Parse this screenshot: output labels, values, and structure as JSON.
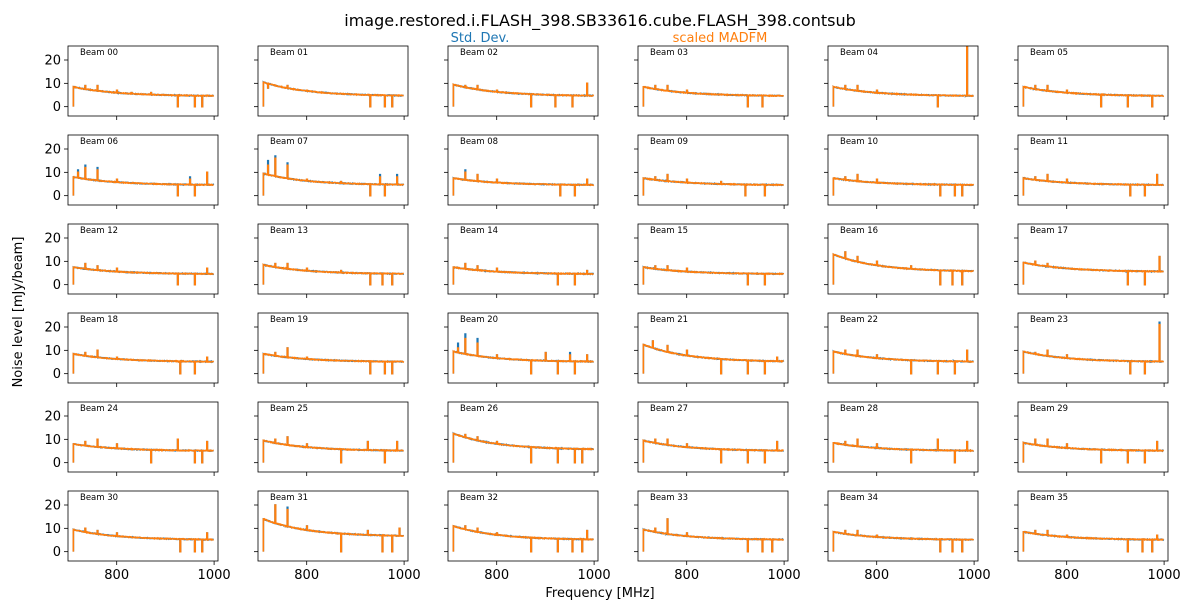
{
  "figure": {
    "title": "image.restored.i.FLASH_398.SB33616.cube.FLASH_398.contsub",
    "xlabel": "Frequency [MHz]",
    "ylabel": "Noise level [mJy/beam]"
  },
  "legend": [
    {
      "label": "Std. Dev.",
      "color": "#1f77b4"
    },
    {
      "label": "scaled MADFM",
      "color": "#ff7f0e"
    }
  ],
  "chart_data": {
    "type": "line",
    "layout": {
      "rows": 6,
      "cols": 6,
      "sharex": true,
      "sharey": true
    },
    "xlim": [
      700,
      1008
    ],
    "ylim": [
      -4,
      26
    ],
    "xticks": [
      800,
      1000
    ],
    "yticks": [
      0,
      10,
      20
    ],
    "xtick_labels": [
      "800",
      "1000"
    ],
    "ytick_labels": [
      "0",
      "10",
      "20"
    ],
    "freq_range": [
      711,
      999
    ],
    "series_names": [
      "Std. Dev.",
      "scaled MADFM"
    ],
    "series_colors": [
      "#1f77b4",
      "#ff7f0e"
    ],
    "panels": [
      {
        "label": "Beam 00",
        "start": 8.5,
        "end": 4.5,
        "spikes": [
          [
            735,
            9
          ],
          [
            760,
            9
          ],
          [
            800,
            7
          ],
          [
            830,
            6
          ],
          [
            870,
            6
          ],
          [
            925,
            0
          ],
          [
            960,
            0
          ],
          [
            975,
            0
          ]
        ]
      },
      {
        "label": "Beam 01",
        "start": 10.5,
        "end": 4.5,
        "spikes": [
          [
            720,
            8
          ],
          [
            735,
            9
          ],
          [
            760,
            9
          ],
          [
            800,
            7
          ],
          [
            930,
            0
          ],
          [
            960,
            0
          ],
          [
            975,
            0
          ]
        ]
      },
      {
        "label": "Beam 02",
        "start": 9.5,
        "end": 4.5,
        "spikes": [
          [
            735,
            9
          ],
          [
            760,
            9
          ],
          [
            800,
            7
          ],
          [
            870,
            0
          ],
          [
            920,
            0
          ],
          [
            955,
            0
          ],
          [
            985,
            10
          ]
        ]
      },
      {
        "label": "Beam 03",
        "start": 8.5,
        "end": 4.5,
        "spikes": [
          [
            735,
            9
          ],
          [
            760,
            9
          ],
          [
            800,
            7
          ],
          [
            925,
            0
          ],
          [
            955,
            0
          ]
        ]
      },
      {
        "label": "Beam 04",
        "start": 8.5,
        "end": 4.5,
        "spikes": [
          [
            735,
            9
          ],
          [
            760,
            9
          ],
          [
            800,
            7
          ],
          [
            925,
            0
          ],
          [
            985,
            26
          ]
        ]
      },
      {
        "label": "Beam 05",
        "start": 8.5,
        "end": 4.5,
        "spikes": [
          [
            735,
            9
          ],
          [
            760,
            9
          ],
          [
            800,
            7
          ],
          [
            870,
            0
          ],
          [
            925,
            0
          ],
          [
            975,
            0
          ]
        ]
      },
      {
        "label": "Beam 06",
        "start": 8,
        "end": 4.5,
        "spikes": [
          [
            720,
            10
          ],
          [
            735,
            12
          ],
          [
            760,
            11
          ],
          [
            800,
            7
          ],
          [
            925,
            0
          ],
          [
            950,
            7
          ],
          [
            960,
            0
          ],
          [
            985,
            10
          ]
        ],
        "std_spikes": [
          [
            720,
            11
          ],
          [
            735,
            13
          ],
          [
            760,
            12
          ],
          [
            950,
            8
          ]
        ]
      },
      {
        "label": "Beam 07",
        "start": 9.5,
        "end": 4.5,
        "spikes": [
          [
            720,
            13
          ],
          [
            735,
            16
          ],
          [
            760,
            13
          ],
          [
            800,
            7
          ],
          [
            870,
            6
          ],
          [
            930,
            0
          ],
          [
            950,
            8
          ],
          [
            960,
            0
          ],
          [
            985,
            8
          ]
        ],
        "std_spikes": [
          [
            720,
            15
          ],
          [
            735,
            17
          ],
          [
            760,
            14
          ],
          [
            950,
            9
          ],
          [
            985,
            9
          ]
        ]
      },
      {
        "label": "Beam 08",
        "start": 7.5,
        "end": 4.5,
        "spikes": [
          [
            735,
            10
          ],
          [
            760,
            9
          ],
          [
            800,
            7
          ],
          [
            930,
            0
          ],
          [
            960,
            0
          ],
          [
            985,
            7
          ]
        ],
        "std_spikes": [
          [
            735,
            11
          ]
        ]
      },
      {
        "label": "Beam 09",
        "start": 7.5,
        "end": 4.5,
        "spikes": [
          [
            735,
            8
          ],
          [
            760,
            9
          ],
          [
            800,
            7
          ],
          [
            870,
            6
          ],
          [
            920,
            0
          ],
          [
            960,
            0
          ]
        ]
      },
      {
        "label": "Beam 10",
        "start": 7.5,
        "end": 4.5,
        "spikes": [
          [
            735,
            8
          ],
          [
            760,
            9
          ],
          [
            800,
            7
          ],
          [
            930,
            0
          ],
          [
            960,
            0
          ],
          [
            975,
            0
          ]
        ]
      },
      {
        "label": "Beam 11",
        "start": 7.5,
        "end": 4.5,
        "spikes": [
          [
            735,
            8
          ],
          [
            760,
            9
          ],
          [
            800,
            7
          ],
          [
            930,
            0
          ],
          [
            960,
            0
          ],
          [
            985,
            9
          ]
        ]
      },
      {
        "label": "Beam 12",
        "start": 7.5,
        "end": 4.5,
        "spikes": [
          [
            735,
            9
          ],
          [
            760,
            8
          ],
          [
            800,
            7
          ],
          [
            925,
            0
          ],
          [
            960,
            0
          ],
          [
            985,
            7
          ]
        ]
      },
      {
        "label": "Beam 13",
        "start": 8.5,
        "end": 4.5,
        "spikes": [
          [
            735,
            9
          ],
          [
            760,
            9
          ],
          [
            800,
            7
          ],
          [
            870,
            6
          ],
          [
            930,
            0
          ],
          [
            955,
            0
          ],
          [
            975,
            0
          ]
        ]
      },
      {
        "label": "Beam 14",
        "start": 7.5,
        "end": 4.5,
        "spikes": [
          [
            735,
            9
          ],
          [
            760,
            8
          ],
          [
            800,
            7
          ],
          [
            925,
            0
          ],
          [
            960,
            0
          ],
          [
            985,
            6
          ]
        ]
      },
      {
        "label": "Beam 15",
        "start": 7.5,
        "end": 4.5,
        "spikes": [
          [
            735,
            8
          ],
          [
            760,
            8
          ],
          [
            800,
            7
          ],
          [
            925,
            0
          ],
          [
            960,
            0
          ]
        ]
      },
      {
        "label": "Beam 16",
        "start": 13,
        "end": 5.5,
        "spikes": [
          [
            735,
            14
          ],
          [
            760,
            12
          ],
          [
            800,
            10
          ],
          [
            870,
            8
          ],
          [
            930,
            0
          ],
          [
            955,
            0
          ],
          [
            975,
            0
          ]
        ]
      },
      {
        "label": "Beam 17",
        "start": 9.5,
        "end": 5.5,
        "spikes": [
          [
            735,
            10
          ],
          [
            760,
            9
          ],
          [
            800,
            7
          ],
          [
            925,
            0
          ],
          [
            960,
            0
          ],
          [
            990,
            12
          ]
        ]
      },
      {
        "label": "Beam 18",
        "start": 8.5,
        "end": 5,
        "spikes": [
          [
            735,
            9
          ],
          [
            760,
            10
          ],
          [
            800,
            7
          ],
          [
            930,
            0
          ],
          [
            960,
            0
          ],
          [
            985,
            7
          ]
        ]
      },
      {
        "label": "Beam 19",
        "start": 8.5,
        "end": 5,
        "spikes": [
          [
            735,
            9
          ],
          [
            760,
            11
          ],
          [
            800,
            7
          ],
          [
            930,
            0
          ],
          [
            960,
            0
          ],
          [
            975,
            0
          ]
        ]
      },
      {
        "label": "Beam 20",
        "start": 9.5,
        "end": 5,
        "spikes": [
          [
            720,
            11
          ],
          [
            735,
            15
          ],
          [
            760,
            13
          ],
          [
            800,
            8
          ],
          [
            870,
            0
          ],
          [
            900,
            9
          ],
          [
            925,
            0
          ],
          [
            950,
            8
          ],
          [
            960,
            0
          ],
          [
            985,
            8
          ]
        ],
        "std_spikes": [
          [
            720,
            13
          ],
          [
            735,
            17
          ],
          [
            760,
            15
          ],
          [
            950,
            9
          ]
        ]
      },
      {
        "label": "Beam 21",
        "start": 12.5,
        "end": 5,
        "spikes": [
          [
            730,
            14
          ],
          [
            760,
            12
          ],
          [
            800,
            10
          ],
          [
            870,
            0
          ],
          [
            925,
            0
          ],
          [
            960,
            0
          ],
          [
            985,
            7
          ]
        ]
      },
      {
        "label": "Beam 22",
        "start": 9.5,
        "end": 5,
        "spikes": [
          [
            735,
            10
          ],
          [
            760,
            10
          ],
          [
            800,
            8
          ],
          [
            870,
            0
          ],
          [
            925,
            0
          ],
          [
            960,
            0
          ],
          [
            985,
            10
          ]
        ]
      },
      {
        "label": "Beam 23",
        "start": 9.5,
        "end": 5,
        "spikes": [
          [
            735,
            9
          ],
          [
            760,
            10
          ],
          [
            800,
            8
          ],
          [
            930,
            0
          ],
          [
            960,
            0
          ],
          [
            990,
            21
          ]
        ],
        "std_spikes": [
          [
            990,
            22
          ]
        ]
      },
      {
        "label": "Beam 24",
        "start": 8,
        "end": 5,
        "spikes": [
          [
            735,
            9
          ],
          [
            760,
            10
          ],
          [
            800,
            8
          ],
          [
            870,
            0
          ],
          [
            925,
            10
          ],
          [
            960,
            0
          ],
          [
            975,
            0
          ],
          [
            985,
            9
          ]
        ]
      },
      {
        "label": "Beam 25",
        "start": 9.5,
        "end": 5,
        "spikes": [
          [
            735,
            10
          ],
          [
            760,
            11
          ],
          [
            800,
            8
          ],
          [
            870,
            0
          ],
          [
            925,
            9
          ],
          [
            960,
            0
          ],
          [
            985,
            9
          ]
        ]
      },
      {
        "label": "Beam 26",
        "start": 12.5,
        "end": 5.5,
        "spikes": [
          [
            735,
            12
          ],
          [
            760,
            11
          ],
          [
            800,
            9
          ],
          [
            870,
            0
          ],
          [
            925,
            0
          ],
          [
            960,
            0
          ],
          [
            975,
            0
          ]
        ]
      },
      {
        "label": "Beam 27",
        "start": 9.5,
        "end": 5,
        "spikes": [
          [
            735,
            10
          ],
          [
            760,
            10
          ],
          [
            800,
            8
          ],
          [
            870,
            0
          ],
          [
            925,
            0
          ],
          [
            960,
            0
          ],
          [
            985,
            9
          ]
        ]
      },
      {
        "label": "Beam 28",
        "start": 8.5,
        "end": 5,
        "spikes": [
          [
            735,
            9
          ],
          [
            760,
            10
          ],
          [
            800,
            8
          ],
          [
            870,
            0
          ],
          [
            925,
            10
          ],
          [
            960,
            0
          ],
          [
            985,
            9
          ]
        ]
      },
      {
        "label": "Beam 29",
        "start": 8.5,
        "end": 5,
        "spikes": [
          [
            735,
            10
          ],
          [
            760,
            10
          ],
          [
            800,
            8
          ],
          [
            870,
            0
          ],
          [
            925,
            0
          ],
          [
            960,
            0
          ],
          [
            985,
            9
          ]
        ]
      },
      {
        "label": "Beam 30",
        "start": 9.5,
        "end": 5,
        "spikes": [
          [
            735,
            10
          ],
          [
            760,
            9
          ],
          [
            800,
            8
          ],
          [
            930,
            0
          ],
          [
            960,
            0
          ],
          [
            975,
            0
          ],
          [
            985,
            8
          ]
        ]
      },
      {
        "label": "Beam 31",
        "start": 14,
        "end": 6.5,
        "spikes": [
          [
            735,
            20
          ],
          [
            760,
            18
          ],
          [
            800,
            11
          ],
          [
            870,
            0
          ],
          [
            925,
            9
          ],
          [
            955,
            0
          ],
          [
            975,
            0
          ],
          [
            990,
            10
          ]
        ],
        "std_spikes": [
          [
            760,
            19
          ]
        ]
      },
      {
        "label": "Beam 32",
        "start": 11,
        "end": 5,
        "spikes": [
          [
            735,
            11
          ],
          [
            760,
            10
          ],
          [
            800,
            8
          ],
          [
            870,
            0
          ],
          [
            925,
            0
          ],
          [
            955,
            0
          ],
          [
            975,
            0
          ],
          [
            985,
            9
          ]
        ]
      },
      {
        "label": "Beam 33",
        "start": 9.5,
        "end": 5,
        "spikes": [
          [
            735,
            10
          ],
          [
            760,
            14
          ],
          [
            800,
            8
          ],
          [
            925,
            0
          ],
          [
            955,
            0
          ],
          [
            975,
            0
          ]
        ]
      },
      {
        "label": "Beam 34",
        "start": 8.5,
        "end": 5,
        "spikes": [
          [
            735,
            9
          ],
          [
            760,
            9
          ],
          [
            800,
            7
          ],
          [
            930,
            0
          ],
          [
            955,
            0
          ],
          [
            975,
            0
          ]
        ]
      },
      {
        "label": "Beam 35",
        "start": 8.5,
        "end": 5,
        "spikes": [
          [
            735,
            9
          ],
          [
            760,
            9
          ],
          [
            800,
            7
          ],
          [
            925,
            0
          ],
          [
            955,
            0
          ],
          [
            975,
            0
          ],
          [
            985,
            7
          ]
        ]
      }
    ]
  }
}
